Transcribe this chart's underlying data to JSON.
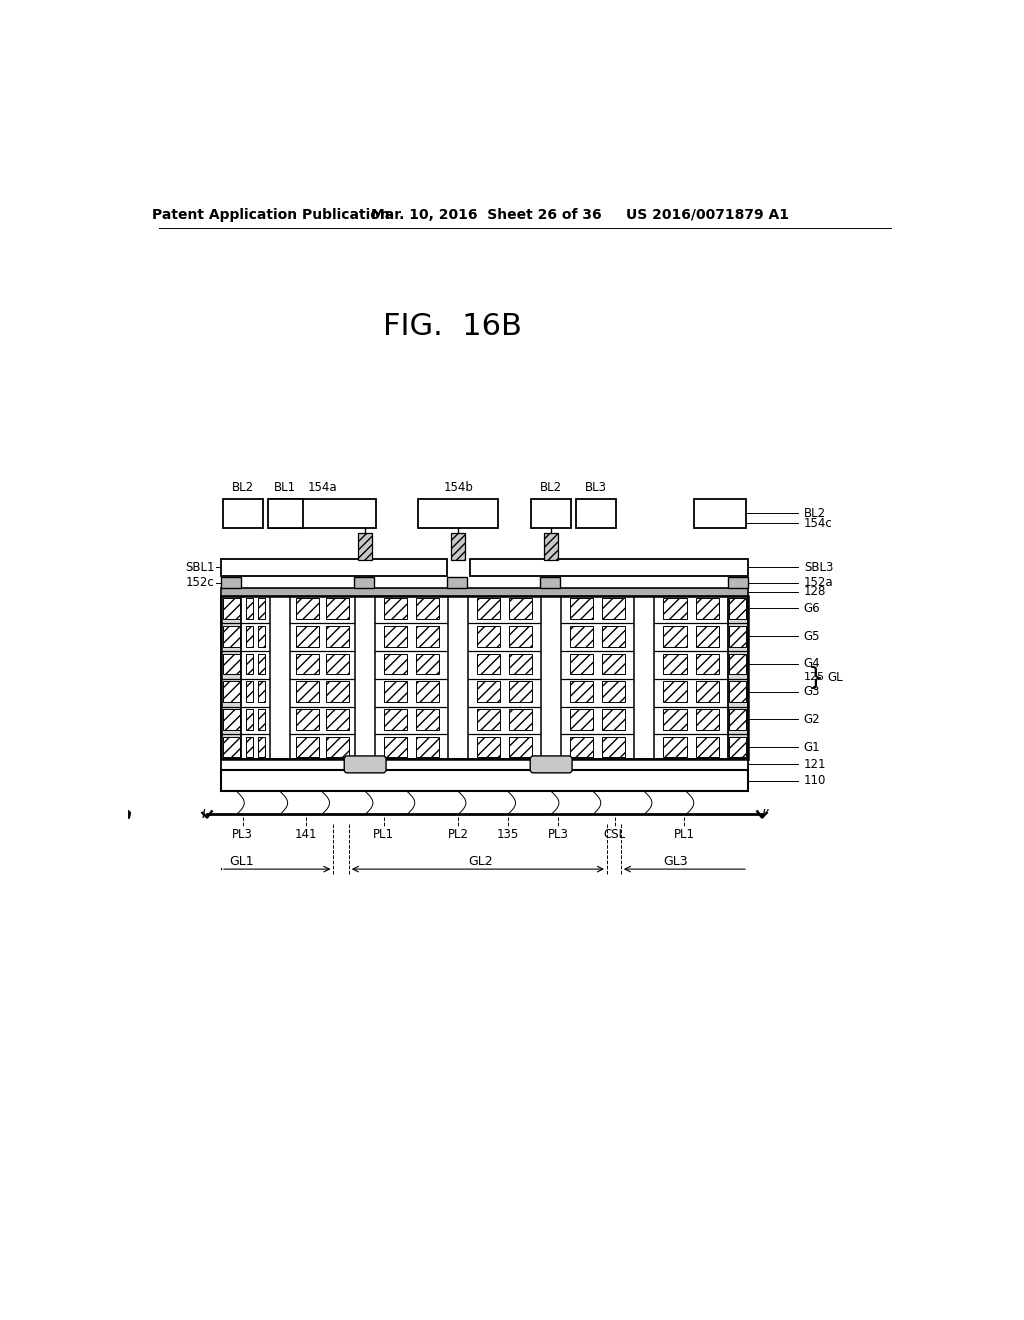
{
  "header_left": "Patent Application Publication",
  "header_mid": "Mar. 10, 2016  Sheet 26 of 36",
  "header_right": "US 2016/0071879 A1",
  "title": "FIG.  16B",
  "bg": "#ffffff"
}
